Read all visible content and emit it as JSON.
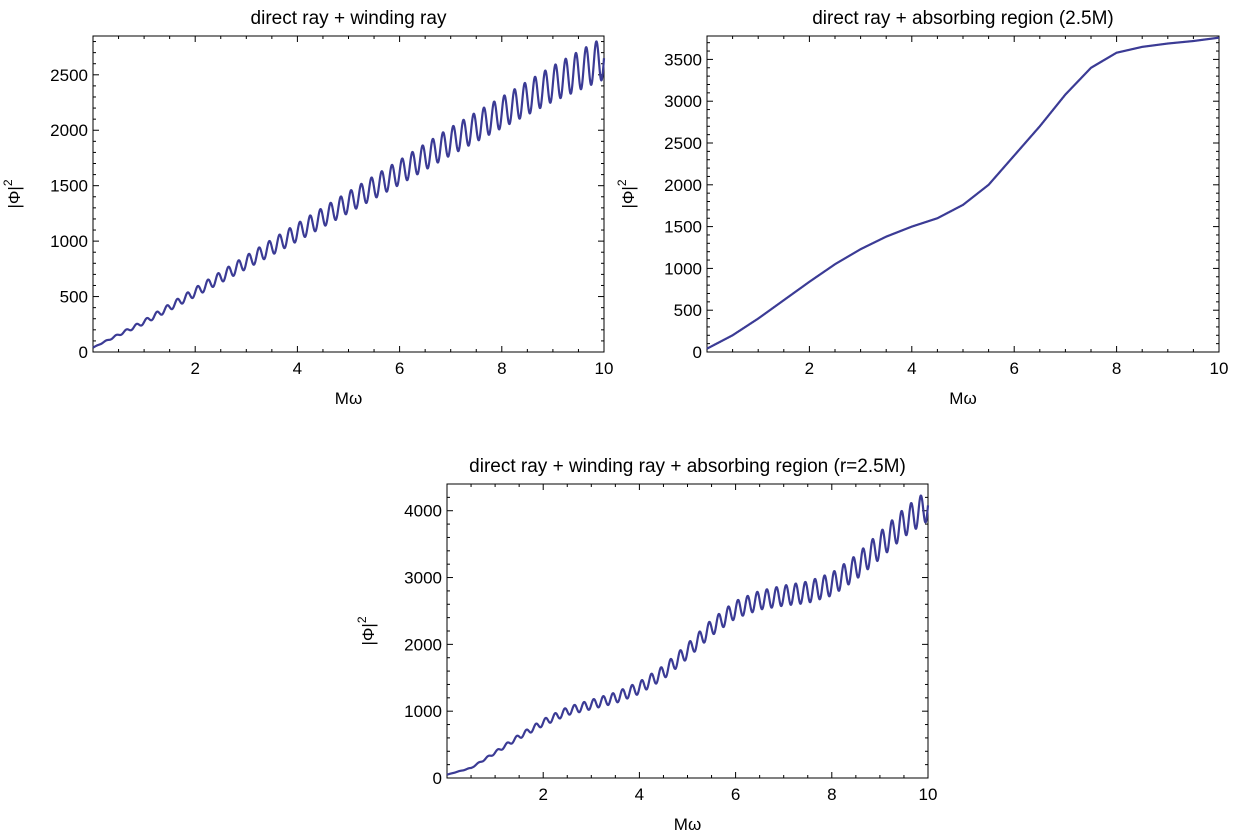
{
  "line_color": "#3b3b95",
  "chart_data": [
    {
      "type": "line",
      "title": "direct ray + winding ray",
      "xlabel": "Mω",
      "ylabel": "|Φ|",
      "ylabel_sup": "2",
      "xlim": [
        0,
        10
      ],
      "ylim": [
        0,
        2850
      ],
      "xticks": [
        2,
        4,
        6,
        8,
        10
      ],
      "yticks": [
        0,
        500,
        1000,
        1500,
        2000,
        2500
      ],
      "grid": false,
      "series": [
        {
          "description": "approximately linear growth with oscillations whose amplitude grows with Mω",
          "x": [
            0,
            1,
            2,
            3,
            4,
            5,
            6,
            7,
            8,
            9,
            10
          ],
          "mean": [
            40,
            270,
            540,
            810,
            1080,
            1350,
            1620,
            1900,
            2160,
            2420,
            2650
          ],
          "amplitude": [
            0,
            20,
            40,
            60,
            80,
            95,
            110,
            125,
            140,
            160,
            190
          ],
          "oscillation_period": 0.2
        }
      ]
    },
    {
      "type": "line",
      "title": "direct ray + absorbing region (2.5M)",
      "xlabel": "Mω",
      "ylabel": "|Φ|",
      "ylabel_sup": "2",
      "xlim": [
        0,
        10
      ],
      "ylim": [
        0,
        3780
      ],
      "xticks": [
        2,
        4,
        6,
        8,
        10
      ],
      "yticks": [
        0,
        500,
        1000,
        1500,
        2000,
        2500,
        3000,
        3500
      ],
      "grid": false,
      "series": [
        {
          "x": [
            0,
            0.5,
            1,
            1.5,
            2,
            2.5,
            3,
            3.5,
            4,
            4.5,
            5,
            5.5,
            6,
            6.5,
            7,
            7.5,
            8,
            8.5,
            9,
            9.5,
            10
          ],
          "mean": [
            40,
            200,
            400,
            620,
            840,
            1050,
            1230,
            1380,
            1500,
            1600,
            1760,
            2000,
            2350,
            2700,
            3080,
            3400,
            3580,
            3650,
            3690,
            3720,
            3760
          ],
          "amplitude": [
            0,
            0,
            0,
            0,
            0,
            0,
            0,
            0,
            0,
            0,
            0,
            0,
            0,
            0,
            0,
            0,
            0,
            0,
            0,
            0,
            0
          ],
          "oscillation_period": 0.2
        }
      ]
    },
    {
      "type": "line",
      "title": "direct ray + winding ray + absorbing region (r=2.5M)",
      "xlabel": "Mω",
      "ylabel": "|Φ|",
      "ylabel_sup": "2",
      "xlim": [
        0,
        10
      ],
      "ylim": [
        0,
        4400
      ],
      "xticks": [
        2,
        4,
        6,
        8,
        10
      ],
      "yticks": [
        0,
        1000,
        2000,
        3000,
        4000
      ],
      "grid": false,
      "series": [
        {
          "x": [
            0,
            0.5,
            1,
            1.5,
            2,
            2.5,
            3,
            3.5,
            4,
            4.5,
            5,
            5.5,
            6,
            6.5,
            7,
            7.5,
            8,
            8.5,
            9,
            9.5,
            10
          ],
          "mean": [
            50,
            150,
            380,
            620,
            830,
            1000,
            1100,
            1200,
            1350,
            1580,
            1900,
            2250,
            2520,
            2660,
            2730,
            2780,
            2900,
            3150,
            3480,
            3820,
            4080
          ],
          "amplitude": [
            0,
            5,
            20,
            35,
            50,
            60,
            70,
            80,
            90,
            100,
            110,
            120,
            130,
            140,
            150,
            160,
            170,
            180,
            200,
            210,
            230
          ],
          "oscillation_period": 0.2
        }
      ]
    }
  ]
}
